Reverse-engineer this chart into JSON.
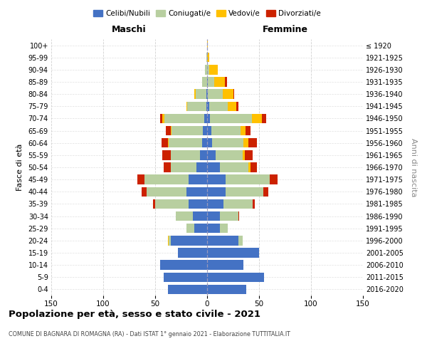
{
  "age_groups_bottom_to_top": [
    "0-4",
    "5-9",
    "10-14",
    "15-19",
    "20-24",
    "25-29",
    "30-34",
    "35-39",
    "40-44",
    "45-49",
    "50-54",
    "55-59",
    "60-64",
    "65-69",
    "70-74",
    "75-79",
    "80-84",
    "85-89",
    "90-94",
    "95-99",
    "100+"
  ],
  "birth_years_bottom_to_top": [
    "2016-2020",
    "2011-2015",
    "2006-2010",
    "2001-2005",
    "1996-2000",
    "1991-1995",
    "1986-1990",
    "1981-1985",
    "1976-1980",
    "1971-1975",
    "1966-1970",
    "1961-1965",
    "1956-1960",
    "1951-1955",
    "1946-1950",
    "1941-1945",
    "1936-1940",
    "1931-1935",
    "1926-1930",
    "1921-1925",
    "≤ 1920"
  ],
  "colors": {
    "celibi": "#4472c4",
    "coniugati": "#b8cfa0",
    "vedovi": "#ffc000",
    "divorziati": "#cc2200"
  },
  "maschi": {
    "celibi": [
      38,
      42,
      45,
      28,
      35,
      12,
      14,
      18,
      20,
      18,
      10,
      7,
      5,
      4,
      3,
      1,
      1,
      0,
      0,
      0,
      0
    ],
    "coniugati": [
      0,
      0,
      0,
      0,
      2,
      8,
      16,
      32,
      38,
      42,
      25,
      28,
      32,
      30,
      38,
      18,
      10,
      5,
      2,
      1,
      0
    ],
    "vedovi": [
      0,
      0,
      0,
      0,
      1,
      0,
      0,
      0,
      0,
      0,
      0,
      0,
      1,
      1,
      2,
      1,
      1,
      0,
      0,
      0,
      0
    ],
    "divorziati": [
      0,
      0,
      0,
      0,
      0,
      0,
      0,
      2,
      5,
      7,
      7,
      8,
      6,
      5,
      2,
      0,
      0,
      0,
      0,
      0,
      0
    ]
  },
  "femmine": {
    "celibi": [
      38,
      55,
      35,
      50,
      30,
      12,
      12,
      16,
      18,
      18,
      12,
      8,
      5,
      4,
      3,
      2,
      1,
      1,
      0,
      0,
      0
    ],
    "coniugati": [
      0,
      0,
      0,
      0,
      4,
      8,
      18,
      28,
      36,
      42,
      28,
      26,
      30,
      28,
      40,
      18,
      14,
      6,
      2,
      0,
      0
    ],
    "vedovi": [
      0,
      0,
      0,
      0,
      0,
      0,
      0,
      0,
      0,
      0,
      2,
      2,
      5,
      5,
      10,
      8,
      10,
      10,
      8,
      2,
      1
    ],
    "divorziati": [
      0,
      0,
      0,
      0,
      0,
      0,
      1,
      2,
      5,
      8,
      6,
      8,
      8,
      5,
      4,
      2,
      1,
      2,
      0,
      0,
      0
    ]
  },
  "xlim": 150,
  "title": "Popolazione per età, sesso e stato civile - 2021",
  "subtitle": "COMUNE DI BAGNARA DI ROMAGNA (RA) - Dati ISTAT 1° gennaio 2021 - Elaborazione TUTTITALIA.IT",
  "xlabel_left": "Maschi",
  "xlabel_right": "Femmine",
  "ylabel_left": "Fasce di età",
  "ylabel_right": "Anni di nascita",
  "legend_labels": [
    "Celibi/Nubili",
    "Coniugati/e",
    "Vedovi/e",
    "Divorziati/e"
  ],
  "background_color": "#ffffff",
  "grid_color": "#cccccc"
}
